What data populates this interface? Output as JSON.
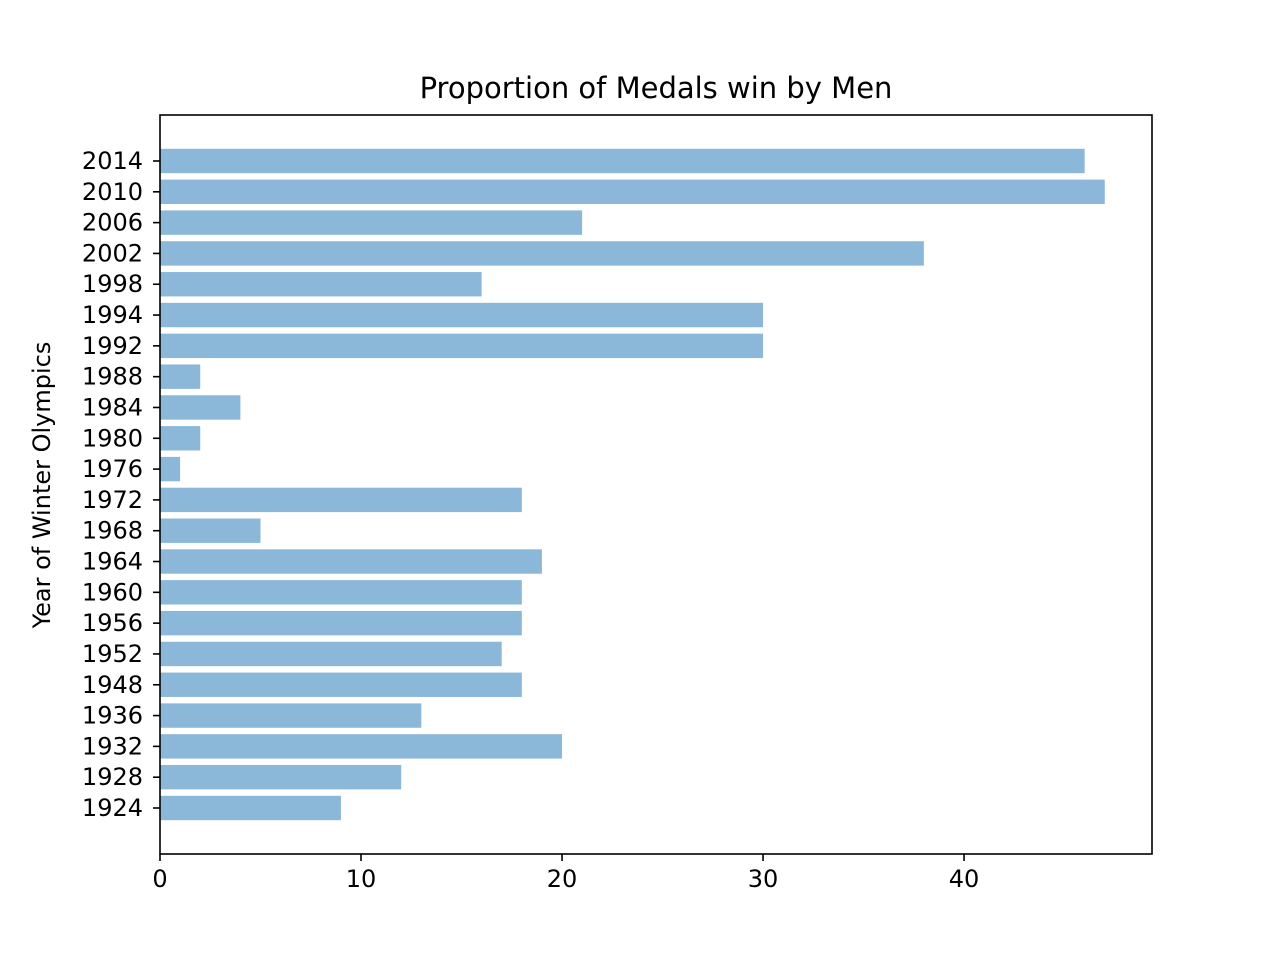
{
  "chart_data": {
    "type": "bar",
    "orientation": "horizontal",
    "title": "Proportion of Medals win by Men",
    "xlabel": "",
    "ylabel": "Year of Winter Olympics",
    "categories": [
      "1924",
      "1928",
      "1932",
      "1936",
      "1948",
      "1952",
      "1956",
      "1960",
      "1964",
      "1968",
      "1972",
      "1976",
      "1980",
      "1984",
      "1988",
      "1992",
      "1994",
      "1998",
      "2002",
      "2006",
      "2010",
      "2014"
    ],
    "values": [
      9,
      12,
      20,
      13,
      18,
      17,
      18,
      18,
      19,
      5,
      18,
      1,
      2,
      4,
      2,
      30,
      30,
      16,
      38,
      21,
      47,
      46
    ],
    "xlim": [
      0,
      49.35
    ],
    "xticks": [
      0,
      10,
      20,
      30,
      40
    ],
    "xtick_labels": [
      "0",
      "10",
      "20",
      "30",
      "40"
    ],
    "grid": false,
    "legend": "none",
    "bar_color": "#8bb8d8"
  }
}
